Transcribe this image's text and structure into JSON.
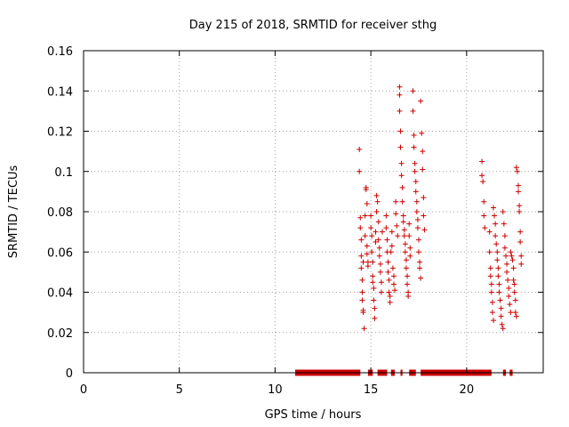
{
  "chart_data": {
    "type": "scatter",
    "title": "Day 215 of 2018, SRMTID for receiver sthg",
    "xlabel": "GPS time / hours",
    "ylabel": "SRMTID / TECUs",
    "xlim": [
      0,
      24
    ],
    "ylim": [
      0,
      0.16
    ],
    "xticks": [
      0,
      5,
      10,
      15,
      20
    ],
    "xtick_labels": [
      "0",
      "5",
      "10",
      "15",
      "20"
    ],
    "yticks": [
      0,
      0.02,
      0.04,
      0.06,
      0.08,
      0.1,
      0.12,
      0.14,
      0.16
    ],
    "ytick_labels": [
      "0",
      "0.02",
      "0.04",
      "0.06",
      "0.08",
      "0.1",
      "0.12",
      "0.14",
      "0.16"
    ],
    "grid": true,
    "marker": "+",
    "series": [
      {
        "name": "SRMTID",
        "color": "#cc0000",
        "points": [
          [
            14.4,
            0.111
          ],
          [
            14.4,
            0.1
          ],
          [
            14.45,
            0.077
          ],
          [
            14.45,
            0.072
          ],
          [
            14.5,
            0.066
          ],
          [
            14.5,
            0.058
          ],
          [
            14.5,
            0.052
          ],
          [
            14.55,
            0.046
          ],
          [
            14.55,
            0.04
          ],
          [
            14.55,
            0.036
          ],
          [
            14.6,
            0.031
          ],
          [
            14.6,
            0.03
          ],
          [
            14.65,
            0.022
          ],
          [
            14.6,
            0.055
          ],
          [
            14.7,
            0.078
          ],
          [
            14.7,
            0.068
          ],
          [
            14.75,
            0.091
          ],
          [
            14.75,
            0.092
          ],
          [
            14.8,
            0.084
          ],
          [
            14.8,
            0.063
          ],
          [
            14.8,
            0.059
          ],
          [
            14.85,
            0.055
          ],
          [
            14.85,
            0.053
          ],
          [
            15.0,
            0.078
          ],
          [
            15.0,
            0.072
          ],
          [
            15.05,
            0.068
          ],
          [
            15.05,
            0.06
          ],
          [
            15.1,
            0.055
          ],
          [
            15.1,
            0.048
          ],
          [
            15.1,
            0.045
          ],
          [
            15.15,
            0.042
          ],
          [
            15.15,
            0.036
          ],
          [
            15.2,
            0.032
          ],
          [
            15.2,
            0.027
          ],
          [
            15.25,
            0.065
          ],
          [
            15.25,
            0.07
          ],
          [
            15.3,
            0.08
          ],
          [
            15.3,
            0.088
          ],
          [
            15.35,
            0.085
          ],
          [
            15.4,
            0.075
          ],
          [
            15.4,
            0.066
          ],
          [
            15.45,
            0.062
          ],
          [
            15.45,
            0.058
          ],
          [
            15.5,
            0.054
          ],
          [
            15.5,
            0.05
          ],
          [
            15.55,
            0.045
          ],
          [
            15.55,
            0.04
          ],
          [
            15.6,
            0.07
          ],
          [
            15.8,
            0.078
          ],
          [
            15.8,
            0.072
          ],
          [
            15.85,
            0.066
          ],
          [
            15.85,
            0.06
          ],
          [
            15.9,
            0.055
          ],
          [
            15.9,
            0.05
          ],
          [
            15.95,
            0.046
          ],
          [
            15.95,
            0.04
          ],
          [
            16.0,
            0.038
          ],
          [
            16.0,
            0.035
          ],
          [
            16.05,
            0.06
          ],
          [
            16.1,
            0.07
          ],
          [
            16.1,
            0.063
          ],
          [
            16.15,
            0.052
          ],
          [
            16.2,
            0.048
          ],
          [
            16.2,
            0.044
          ],
          [
            16.25,
            0.041
          ],
          [
            16.3,
            0.085
          ],
          [
            16.3,
            0.079
          ],
          [
            16.35,
            0.073
          ],
          [
            16.4,
            0.068
          ],
          [
            16.5,
            0.142
          ],
          [
            16.5,
            0.138
          ],
          [
            16.5,
            0.13
          ],
          [
            16.55,
            0.12
          ],
          [
            16.55,
            0.112
          ],
          [
            16.6,
            0.104
          ],
          [
            16.6,
            0.098
          ],
          [
            16.65,
            0.092
          ],
          [
            16.65,
            0.085
          ],
          [
            16.7,
            0.078
          ],
          [
            16.7,
            0.075
          ],
          [
            16.75,
            0.071
          ],
          [
            16.75,
            0.068
          ],
          [
            16.8,
            0.064
          ],
          [
            16.8,
            0.06
          ],
          [
            16.85,
            0.056
          ],
          [
            16.85,
            0.052
          ],
          [
            16.9,
            0.048
          ],
          [
            16.9,
            0.044
          ],
          [
            16.95,
            0.04
          ],
          [
            16.95,
            0.038
          ],
          [
            17.0,
            0.074
          ],
          [
            17.0,
            0.068
          ],
          [
            17.05,
            0.062
          ],
          [
            17.05,
            0.058
          ],
          [
            17.2,
            0.14
          ],
          [
            17.2,
            0.13
          ],
          [
            17.25,
            0.118
          ],
          [
            17.25,
            0.112
          ],
          [
            17.3,
            0.104
          ],
          [
            17.3,
            0.1
          ],
          [
            17.35,
            0.095
          ],
          [
            17.35,
            0.09
          ],
          [
            17.4,
            0.085
          ],
          [
            17.4,
            0.08
          ],
          [
            17.45,
            0.076
          ],
          [
            17.45,
            0.072
          ],
          [
            17.5,
            0.066
          ],
          [
            17.5,
            0.06
          ],
          [
            17.55,
            0.055
          ],
          [
            17.55,
            0.052
          ],
          [
            17.6,
            0.047
          ],
          [
            17.6,
            0.135
          ],
          [
            17.65,
            0.119
          ],
          [
            17.7,
            0.11
          ],
          [
            17.7,
            0.101
          ],
          [
            17.75,
            0.087
          ],
          [
            17.75,
            0.078
          ],
          [
            17.8,
            0.071
          ],
          [
            20.8,
            0.105
          ],
          [
            20.8,
            0.098
          ],
          [
            20.85,
            0.095
          ],
          [
            20.9,
            0.085
          ],
          [
            20.9,
            0.078
          ],
          [
            20.95,
            0.072
          ],
          [
            21.2,
            0.07
          ],
          [
            21.2,
            0.06
          ],
          [
            21.25,
            0.052
          ],
          [
            21.25,
            0.048
          ],
          [
            21.3,
            0.044
          ],
          [
            21.3,
            0.04
          ],
          [
            21.35,
            0.035
          ],
          [
            21.35,
            0.03
          ],
          [
            21.4,
            0.026
          ],
          [
            21.4,
            0.082
          ],
          [
            21.45,
            0.078
          ],
          [
            21.5,
            0.074
          ],
          [
            21.5,
            0.068
          ],
          [
            21.55,
            0.064
          ],
          [
            21.6,
            0.06
          ],
          [
            21.6,
            0.056
          ],
          [
            21.65,
            0.052
          ],
          [
            21.65,
            0.048
          ],
          [
            21.7,
            0.044
          ],
          [
            21.7,
            0.04
          ],
          [
            21.75,
            0.036
          ],
          [
            21.8,
            0.032
          ],
          [
            21.8,
            0.028
          ],
          [
            21.85,
            0.024
          ],
          [
            21.9,
            0.022
          ],
          [
            21.9,
            0.08
          ],
          [
            21.95,
            0.074
          ],
          [
            22.0,
            0.068
          ],
          [
            22.0,
            0.062
          ],
          [
            22.05,
            0.058
          ],
          [
            22.1,
            0.054
          ],
          [
            22.1,
            0.05
          ],
          [
            22.15,
            0.046
          ],
          [
            22.2,
            0.042
          ],
          [
            22.2,
            0.038
          ],
          [
            22.25,
            0.034
          ],
          [
            22.3,
            0.03
          ],
          [
            22.3,
            0.06
          ],
          [
            22.35,
            0.058
          ],
          [
            22.4,
            0.056
          ],
          [
            22.45,
            0.052
          ],
          [
            22.45,
            0.046
          ],
          [
            22.5,
            0.044
          ],
          [
            22.5,
            0.04
          ],
          [
            22.55,
            0.036
          ],
          [
            22.55,
            0.03
          ],
          [
            22.6,
            0.028
          ],
          [
            22.6,
            0.102
          ],
          [
            22.65,
            0.1
          ],
          [
            22.7,
            0.093
          ],
          [
            22.7,
            0.09
          ],
          [
            22.75,
            0.083
          ],
          [
            22.75,
            0.08
          ],
          [
            22.8,
            0.07
          ],
          [
            22.8,
            0.065
          ],
          [
            22.85,
            0.058
          ],
          [
            22.85,
            0.054
          ]
        ]
      }
    ],
    "zero_segments": [
      [
        11.05,
        14.45
      ],
      [
        14.85,
        15.1
      ],
      [
        15.35,
        15.85
      ],
      [
        16.05,
        16.25
      ],
      [
        16.55,
        16.65
      ],
      [
        17.0,
        17.35
      ],
      [
        17.6,
        21.3
      ],
      [
        21.9,
        22.05
      ],
      [
        22.25,
        22.4
      ]
    ],
    "zero_color": "#cc0000"
  }
}
